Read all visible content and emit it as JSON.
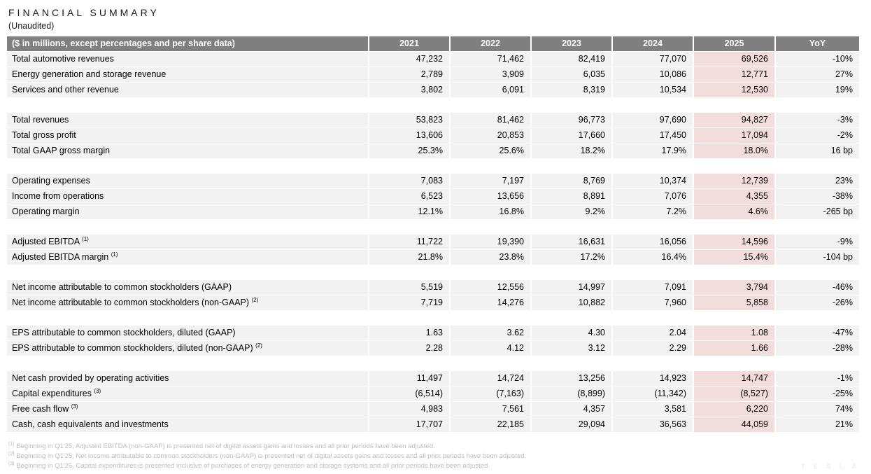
{
  "title": "FINANCIAL SUMMARY",
  "subtitle": "(Unaudited)",
  "colors": {
    "header_bg": "#7f7f7f",
    "header_text": "#ffffff",
    "row_bg": "#f2f2f2",
    "highlight_2025_bg": "#f2dddc",
    "footnote_text": "#bdbdbd",
    "watermark_text": "#ededed"
  },
  "table": {
    "header": [
      "($ in millions, except percentages and per share data)",
      "2021",
      "2022",
      "2023",
      "2024",
      "2025",
      "YoY"
    ],
    "highlighted_column": "2025",
    "sections": [
      {
        "rows": [
          {
            "label": "Total automotive revenues",
            "sup": "",
            "values": [
              "47,232",
              "71,462",
              "82,419",
              "77,070",
              "69,526",
              "-10%"
            ]
          },
          {
            "label": "Energy generation and storage revenue",
            "sup": "",
            "values": [
              "2,789",
              "3,909",
              "6,035",
              "10,086",
              "12,771",
              "27%"
            ]
          },
          {
            "label": "Services and other revenue",
            "sup": "",
            "values": [
              "3,802",
              "6,091",
              "8,319",
              "10,534",
              "12,530",
              "19%"
            ]
          }
        ]
      },
      {
        "rows": [
          {
            "label": "Total revenues",
            "sup": "",
            "values": [
              "53,823",
              "81,462",
              "96,773",
              "97,690",
              "94,827",
              "-3%"
            ]
          },
          {
            "label": "Total gross profit",
            "sup": "",
            "values": [
              "13,606",
              "20,853",
              "17,660",
              "17,450",
              "17,094",
              "-2%"
            ]
          },
          {
            "label": "Total GAAP gross margin",
            "sup": "",
            "values": [
              "25.3%",
              "25.6%",
              "18.2%",
              "17.9%",
              "18.0%",
              "16 bp"
            ]
          }
        ]
      },
      {
        "rows": [
          {
            "label": "Operating expenses",
            "sup": "",
            "values": [
              "7,083",
              "7,197",
              "8,769",
              "10,374",
              "12,739",
              "23%"
            ]
          },
          {
            "label": "Income from operations",
            "sup": "",
            "values": [
              "6,523",
              "13,656",
              "8,891",
              "7,076",
              "4,355",
              "-38%"
            ]
          },
          {
            "label": "Operating margin",
            "sup": "",
            "values": [
              "12.1%",
              "16.8%",
              "9.2%",
              "7.2%",
              "4.6%",
              "-265 bp"
            ]
          }
        ]
      },
      {
        "rows": [
          {
            "label": "Adjusted EBITDA",
            "sup": "(1)",
            "values": [
              "11,722",
              "19,390",
              "16,631",
              "16,056",
              "14,596",
              "-9%"
            ]
          },
          {
            "label": "Adjusted EBITDA margin",
            "sup": "(1)",
            "values": [
              "21.8%",
              "23.8%",
              "17.2%",
              "16.4%",
              "15.4%",
              "-104 bp"
            ]
          }
        ]
      },
      {
        "rows": [
          {
            "label": "Net income attributable to common stockholders (GAAP)",
            "sup": "",
            "values": [
              "5,519",
              "12,556",
              "14,997",
              "7,091",
              "3,794",
              "-46%"
            ]
          },
          {
            "label": "Net income attributable to common stockholders (non-GAAP)",
            "sup": "(2)",
            "values": [
              "7,719",
              "14,276",
              "10,882",
              "7,960",
              "5,858",
              "-26%"
            ]
          }
        ]
      },
      {
        "rows": [
          {
            "label": "EPS attributable to common stockholders, diluted (GAAP)",
            "sup": "",
            "values": [
              "1.63",
              "3.62",
              "4.30",
              "2.04",
              "1.08",
              "-47%"
            ]
          },
          {
            "label": "EPS attributable to common stockholders, diluted (non-GAAP)",
            "sup": "(2)",
            "values": [
              "2.28",
              "4.12",
              "3.12",
              "2.29",
              "1.66",
              "-28%"
            ]
          }
        ]
      },
      {
        "rows": [
          {
            "label": "Net cash provided by operating activities",
            "sup": "",
            "values": [
              "11,497",
              "14,724",
              "13,256",
              "14,923",
              "14,747",
              "-1%"
            ]
          },
          {
            "label": "Capital expenditures",
            "sup": "(3)",
            "values": [
              "(6,514)",
              "(7,163)",
              "(8,899)",
              "(11,342)",
              "(8,527)",
              "-25%"
            ]
          },
          {
            "label": "Free cash flow",
            "sup": "(3)",
            "values": [
              "4,983",
              "7,561",
              "4,357",
              "3,581",
              "6,220",
              "74%"
            ]
          },
          {
            "label": "Cash, cash equivalents and investments",
            "sup": "",
            "values": [
              "17,707",
              "22,185",
              "29,094",
              "36,563",
              "44,059",
              "21%"
            ]
          }
        ]
      }
    ]
  },
  "footnotes": [
    {
      "marker": "(1)",
      "text": "Beginning in Q1'25, Adjusted EBITDA (non-GAAP) is presented net of digital assets gains and losses and all prior periods have been adjusted."
    },
    {
      "marker": "(2)",
      "text": "Beginning in Q1'25, Net income attributable to common stockholders (non-GAAP) is presented net of digital assets gains and losses and all prior periods have been adjusted."
    },
    {
      "marker": "(3)",
      "text": "Beginning in Q1'25, Capital expenditures is presented inclusive of purchases of energy generation and storage systems and all prior periods have been adjusted."
    }
  ],
  "watermark": "T E S L A"
}
